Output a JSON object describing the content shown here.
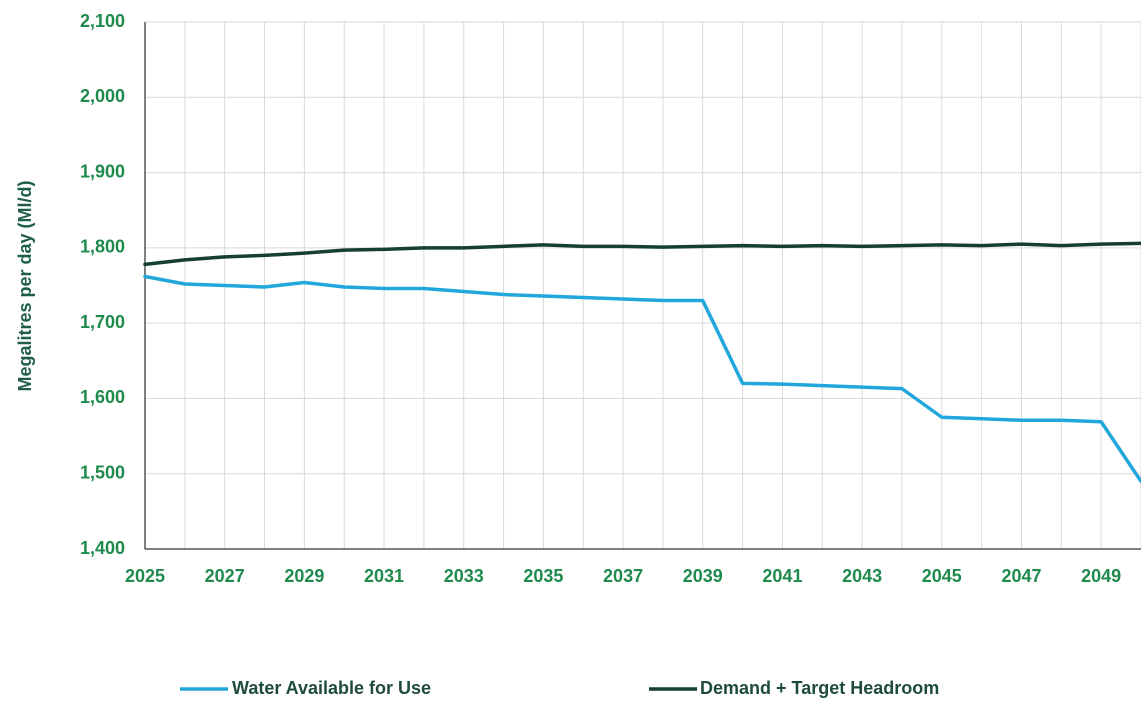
{
  "colors": {
    "tick_text": "#1e8a4c",
    "axis_title": "#1e5e4a",
    "legend_text": "#1f4b3f",
    "grid": "#d9d9d9",
    "axis": "#000000"
  },
  "chart_data": {
    "type": "line",
    "title": "",
    "xlabel": "",
    "ylabel": "Megalitres per day (Ml/d)",
    "x": [
      2025,
      2026,
      2027,
      2028,
      2029,
      2030,
      2031,
      2032,
      2033,
      2034,
      2035,
      2036,
      2037,
      2038,
      2039,
      2040,
      2041,
      2042,
      2043,
      2044,
      2045,
      2046,
      2047,
      2048,
      2049,
      2050
    ],
    "x_tick_labels": [
      "2025",
      "2027",
      "2029",
      "2031",
      "2033",
      "2035",
      "2037",
      "2039",
      "2041",
      "2043",
      "2045",
      "2047",
      "2049"
    ],
    "xlim": [
      2025,
      2050
    ],
    "ylim": [
      1400,
      2100
    ],
    "y_ticks": [
      1400,
      1500,
      1600,
      1700,
      1800,
      1900,
      2000,
      2100
    ],
    "y_tick_labels": [
      "1,400",
      "1,500",
      "1,600",
      "1,700",
      "1,800",
      "1,900",
      "2,000",
      "2,100"
    ],
    "grid": true,
    "legend_position": "bottom",
    "series": [
      {
        "name": "Water Available for Use",
        "color": "#22a7dc",
        "values": [
          1762,
          1752,
          1750,
          1748,
          1754,
          1748,
          1746,
          1746,
          1742,
          1738,
          1736,
          1734,
          1732,
          1730,
          1730,
          1620,
          1619,
          1617,
          1615,
          1613,
          1575,
          1573,
          1571,
          1571,
          1569,
          1490
        ]
      },
      {
        "name": "Demand + Target Headroom",
        "color": "#163f33",
        "values": [
          1778,
          1784,
          1788,
          1790,
          1793,
          1797,
          1798,
          1800,
          1800,
          1802,
          1804,
          1802,
          1802,
          1801,
          1802,
          1803,
          1802,
          1803,
          1802,
          1803,
          1804,
          1803,
          1805,
          1803,
          1805,
          1806
        ]
      }
    ]
  }
}
